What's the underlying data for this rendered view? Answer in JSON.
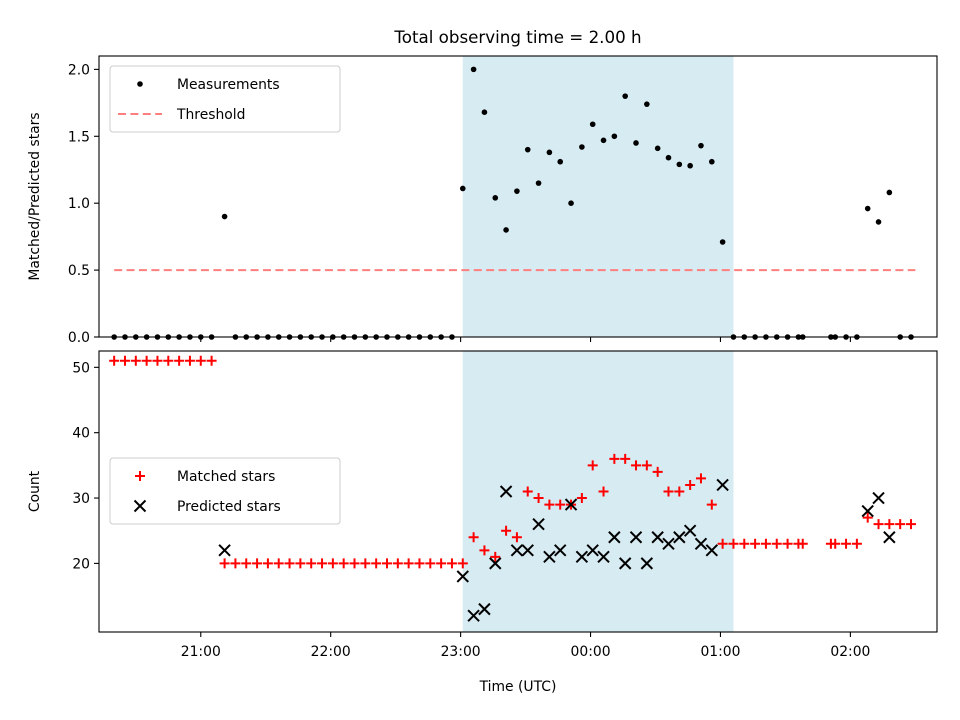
{
  "figure": {
    "title": "Total observing time = 2.00 h",
    "xlabel": "Time (UTC)"
  },
  "colors": {
    "measurement": "#000000",
    "threshold": "#ff7f7f",
    "matched": "#ff0000",
    "predicted": "#000000",
    "highlight": "#add8e6"
  },
  "chart_data": [
    {
      "type": "scatter",
      "name": "ratio-panel",
      "ylabel": "Matched/Predicted stars",
      "ylim": [
        0,
        2.1
      ],
      "yticks": [
        0.0,
        0.5,
        1.0,
        1.5,
        2.0
      ],
      "ytick_labels": [
        "0.0",
        "0.5",
        "1.0",
        "1.5",
        "2.0"
      ],
      "xticks": [
        "21:00",
        "22:00",
        "23:00",
        "00:00",
        "01:00",
        "02:00"
      ],
      "xtick_labels": [
        "",
        "",
        "",
        "",
        "",
        ""
      ],
      "highlight_span": {
        "start": "23:01",
        "end": "01:06"
      },
      "legend": {
        "position": "upper-left",
        "entries": [
          {
            "label": "Measurements",
            "kind": "dot"
          },
          {
            "label": "Threshold",
            "kind": "dashed"
          }
        ]
      },
      "threshold": {
        "value": 0.5,
        "x_start": "20:20",
        "x_end": "02:30"
      },
      "series": [
        {
          "name": "Measurements",
          "marker": "dot",
          "points": [
            [
              "20:20",
              0
            ],
            [
              "20:25",
              0
            ],
            [
              "20:30",
              0
            ],
            [
              "20:35",
              0
            ],
            [
              "20:40",
              0
            ],
            [
              "20:45",
              0
            ],
            [
              "20:50",
              0
            ],
            [
              "20:55",
              0
            ],
            [
              "21:00",
              0
            ],
            [
              "21:05",
              0
            ],
            [
              "21:11",
              0.9
            ],
            [
              "21:16",
              0
            ],
            [
              "21:21",
              0
            ],
            [
              "21:26",
              0
            ],
            [
              "21:31",
              0
            ],
            [
              "21:36",
              0
            ],
            [
              "21:41",
              0
            ],
            [
              "21:46",
              0
            ],
            [
              "21:51",
              0
            ],
            [
              "21:56",
              0
            ],
            [
              "22:01",
              0
            ],
            [
              "22:06",
              0
            ],
            [
              "22:11",
              0
            ],
            [
              "22:16",
              0
            ],
            [
              "22:21",
              0
            ],
            [
              "22:26",
              0
            ],
            [
              "22:31",
              0
            ],
            [
              "22:36",
              0
            ],
            [
              "22:41",
              0
            ],
            [
              "22:46",
              0
            ],
            [
              "22:51",
              0
            ],
            [
              "22:56",
              0
            ],
            [
              "23:01",
              1.11
            ],
            [
              "23:06",
              2.0
            ],
            [
              "23:11",
              1.68
            ],
            [
              "23:16",
              1.04
            ],
            [
              "23:21",
              0.8
            ],
            [
              "23:26",
              1.09
            ],
            [
              "23:31",
              1.4
            ],
            [
              "23:36",
              1.15
            ],
            [
              "23:41",
              1.38
            ],
            [
              "23:46",
              1.31
            ],
            [
              "23:51",
              1.0
            ],
            [
              "23:56",
              1.42
            ],
            [
              "00:01",
              1.59
            ],
            [
              "00:06",
              1.47
            ],
            [
              "00:11",
              1.5
            ],
            [
              "00:16",
              1.8
            ],
            [
              "00:21",
              1.45
            ],
            [
              "00:26",
              1.74
            ],
            [
              "00:31",
              1.41
            ],
            [
              "00:36",
              1.34
            ],
            [
              "00:41",
              1.29
            ],
            [
              "00:46",
              1.28
            ],
            [
              "00:51",
              1.43
            ],
            [
              "00:56",
              1.31
            ],
            [
              "01:01",
              0.71
            ],
            [
              "01:06",
              0
            ],
            [
              "01:11",
              0
            ],
            [
              "01:16",
              0
            ],
            [
              "01:21",
              0
            ],
            [
              "01:26",
              0
            ],
            [
              "01:31",
              0
            ],
            [
              "01:36",
              0
            ],
            [
              "01:38",
              0
            ],
            [
              "01:51",
              0
            ],
            [
              "01:53",
              0
            ],
            [
              "01:58",
              0
            ],
            [
              "02:03",
              0
            ],
            [
              "02:08",
              0.96
            ],
            [
              "02:13",
              0.86
            ],
            [
              "02:18",
              1.08
            ],
            [
              "02:23",
              0
            ],
            [
              "02:28",
              0
            ]
          ]
        }
      ]
    },
    {
      "type": "scatter",
      "name": "count-panel",
      "ylabel": "Count",
      "ylim": [
        9.5,
        52.5
      ],
      "yticks": [
        20,
        30,
        40,
        50
      ],
      "ytick_labels": [
        "20",
        "30",
        "40",
        "50"
      ],
      "xticks": [
        "21:00",
        "22:00",
        "23:00",
        "00:00",
        "01:00",
        "02:00"
      ],
      "xtick_labels": [
        "21:00",
        "22:00",
        "23:00",
        "00:00",
        "01:00",
        "02:00"
      ],
      "highlight_span": {
        "start": "23:01",
        "end": "01:06"
      },
      "legend": {
        "position": "center-left",
        "entries": [
          {
            "label": "Matched stars",
            "kind": "plus"
          },
          {
            "label": "Predicted stars",
            "kind": "x"
          }
        ]
      },
      "series": [
        {
          "name": "Matched stars",
          "marker": "plus",
          "points": [
            [
              "20:20",
              51
            ],
            [
              "20:25",
              51
            ],
            [
              "20:30",
              51
            ],
            [
              "20:35",
              51
            ],
            [
              "20:40",
              51
            ],
            [
              "20:45",
              51
            ],
            [
              "20:50",
              51
            ],
            [
              "20:55",
              51
            ],
            [
              "21:00",
              51
            ],
            [
              "21:05",
              51
            ],
            [
              "21:11",
              20
            ],
            [
              "21:16",
              20
            ],
            [
              "21:21",
              20
            ],
            [
              "21:26",
              20
            ],
            [
              "21:31",
              20
            ],
            [
              "21:36",
              20
            ],
            [
              "21:41",
              20
            ],
            [
              "21:46",
              20
            ],
            [
              "21:51",
              20
            ],
            [
              "21:56",
              20
            ],
            [
              "22:01",
              20
            ],
            [
              "22:06",
              20
            ],
            [
              "22:11",
              20
            ],
            [
              "22:16",
              20
            ],
            [
              "22:21",
              20
            ],
            [
              "22:26",
              20
            ],
            [
              "22:31",
              20
            ],
            [
              "22:36",
              20
            ],
            [
              "22:41",
              20
            ],
            [
              "22:46",
              20
            ],
            [
              "22:51",
              20
            ],
            [
              "22:56",
              20
            ],
            [
              "23:01",
              20
            ],
            [
              "23:06",
              24
            ],
            [
              "23:11",
              22
            ],
            [
              "23:16",
              21
            ],
            [
              "23:21",
              25
            ],
            [
              "23:26",
              24
            ],
            [
              "23:31",
              31
            ],
            [
              "23:36",
              30
            ],
            [
              "23:41",
              29
            ],
            [
              "23:46",
              29
            ],
            [
              "23:51",
              29
            ],
            [
              "23:56",
              30
            ],
            [
              "00:01",
              35
            ],
            [
              "00:06",
              31
            ],
            [
              "00:11",
              36
            ],
            [
              "00:16",
              36
            ],
            [
              "00:21",
              35
            ],
            [
              "00:26",
              35
            ],
            [
              "00:31",
              34
            ],
            [
              "00:36",
              31
            ],
            [
              "00:41",
              31
            ],
            [
              "00:46",
              32
            ],
            [
              "00:51",
              33
            ],
            [
              "00:56",
              29
            ],
            [
              "01:01",
              23
            ],
            [
              "01:06",
              23
            ],
            [
              "01:11",
              23
            ],
            [
              "01:16",
              23
            ],
            [
              "01:21",
              23
            ],
            [
              "01:26",
              23
            ],
            [
              "01:31",
              23
            ],
            [
              "01:36",
              23
            ],
            [
              "01:38",
              23
            ],
            [
              "01:51",
              23
            ],
            [
              "01:53",
              23
            ],
            [
              "01:58",
              23
            ],
            [
              "02:03",
              23
            ],
            [
              "02:08",
              27
            ],
            [
              "02:13",
              26
            ],
            [
              "02:18",
              26
            ],
            [
              "02:23",
              26
            ],
            [
              "02:28",
              26
            ]
          ]
        },
        {
          "name": "Predicted stars",
          "marker": "x",
          "points": [
            [
              "21:11",
              22
            ],
            [
              "23:01",
              18
            ],
            [
              "23:06",
              12
            ],
            [
              "23:11",
              13
            ],
            [
              "23:16",
              20
            ],
            [
              "23:21",
              31
            ],
            [
              "23:26",
              22
            ],
            [
              "23:31",
              22
            ],
            [
              "23:36",
              26
            ],
            [
              "23:41",
              21
            ],
            [
              "23:46",
              22
            ],
            [
              "23:51",
              29
            ],
            [
              "23:56",
              21
            ],
            [
              "00:01",
              22
            ],
            [
              "00:06",
              21
            ],
            [
              "00:11",
              24
            ],
            [
              "00:16",
              20
            ],
            [
              "00:21",
              24
            ],
            [
              "00:26",
              20
            ],
            [
              "00:31",
              24
            ],
            [
              "00:36",
              23
            ],
            [
              "00:41",
              24
            ],
            [
              "00:46",
              25
            ],
            [
              "00:51",
              23
            ],
            [
              "00:56",
              22
            ],
            [
              "01:01",
              32
            ],
            [
              "02:08",
              28
            ],
            [
              "02:13",
              30
            ],
            [
              "02:18",
              24
            ]
          ]
        }
      ]
    }
  ]
}
